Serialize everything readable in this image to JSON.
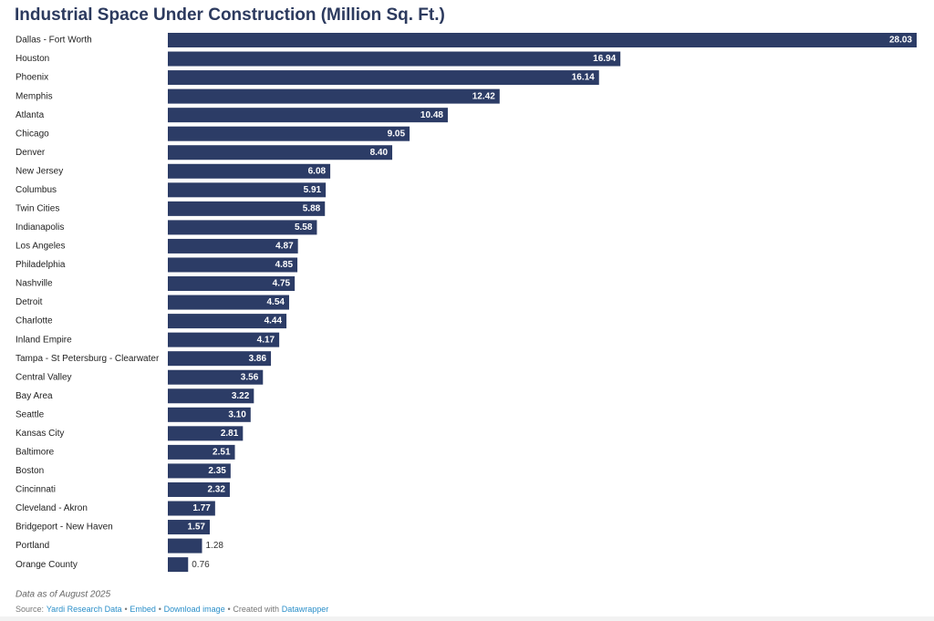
{
  "chart_data": {
    "type": "bar",
    "orientation": "horizontal",
    "title": "Industrial Space Under Construction (Million Sq. Ft.)",
    "categories": [
      "Dallas - Fort Worth",
      "Houston",
      "Phoenix",
      "Memphis",
      "Atlanta",
      "Chicago",
      "Denver",
      "New Jersey",
      "Columbus",
      "Twin Cities",
      "Indianapolis",
      "Los Angeles",
      "Philadelphia",
      "Nashville",
      "Detroit",
      "Charlotte",
      "Inland Empire",
      "Tampa - St Petersburg - Clearwater",
      "Central Valley",
      "Bay Area",
      "Seattle",
      "Kansas City",
      "Baltimore",
      "Boston",
      "Cincinnati",
      "Cleveland - Akron",
      "Bridgeport - New Haven",
      "Portland",
      "Orange County"
    ],
    "values": [
      28.03,
      16.94,
      16.14,
      12.42,
      10.48,
      9.05,
      8.4,
      6.08,
      5.91,
      5.88,
      5.58,
      4.87,
      4.85,
      4.75,
      4.54,
      4.44,
      4.17,
      3.86,
      3.56,
      3.22,
      3.1,
      2.81,
      2.51,
      2.35,
      2.32,
      1.77,
      1.57,
      1.28,
      0.76
    ],
    "value_labels": [
      "28.03",
      "16.94",
      "16.14",
      "12.42",
      "10.48",
      "9.05",
      "8.40",
      "6.08",
      "5.91",
      "5.88",
      "5.58",
      "4.87",
      "4.85",
      "4.75",
      "4.54",
      "4.44",
      "4.17",
      "3.86",
      "3.56",
      "3.22",
      "3.10",
      "2.81",
      "2.51",
      "2.35",
      "2.32",
      "1.77",
      "1.57",
      "1.28",
      "0.76"
    ],
    "color": "#2c3c66",
    "note": "Data as of August 2025",
    "footer": {
      "source_label": "Source:",
      "source": "Yardi Research Data",
      "separator": "•",
      "embed": "Embed",
      "download": "Download image",
      "created_with": "Created with",
      "tool": "Datawrapper"
    }
  }
}
